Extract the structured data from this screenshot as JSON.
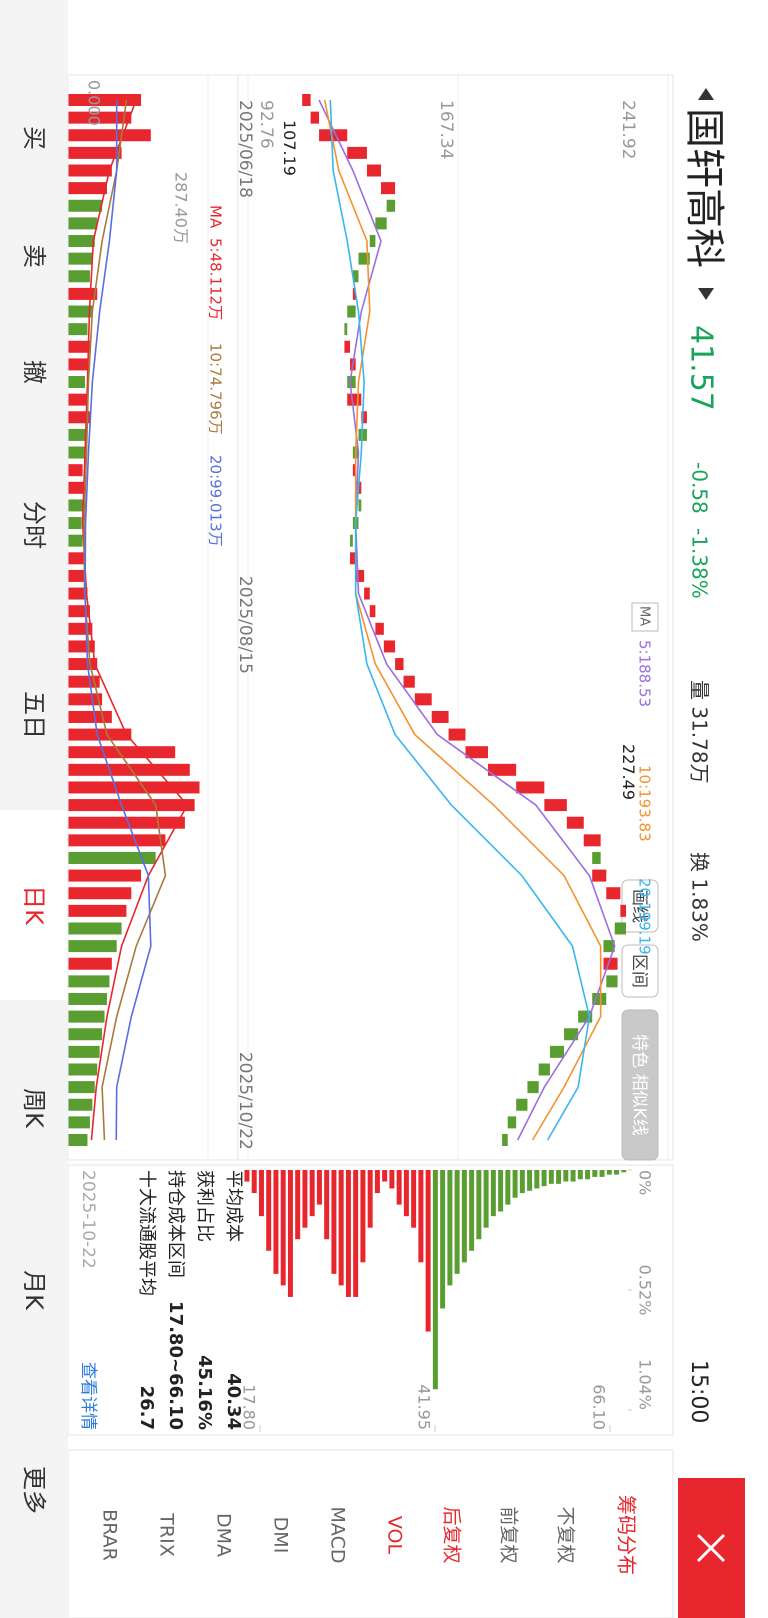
{
  "header": {
    "title": "国轩高科",
    "price": "41.57",
    "change": "-0.58",
    "change_pct": "-1.38%",
    "volume": "量 31.78万",
    "turnover": "换 1.83%",
    "time": "15:00"
  },
  "toolbar": {
    "ma_menu": "MA",
    "buttons": [
      "画线",
      "区间",
      "特色 相似K线"
    ]
  },
  "chart_data": {
    "type": "candlestick",
    "categories": [
      "2025/06/18",
      null,
      null,
      null,
      null,
      null,
      null,
      null,
      null,
      null,
      null,
      null,
      null,
      null,
      null,
      null,
      null,
      null,
      null,
      null,
      null,
      null,
      null,
      null,
      null,
      null,
      null,
      "2025/08/15",
      null,
      null,
      null,
      null,
      null,
      null,
      null,
      null,
      null,
      null,
      null,
      null,
      null,
      null,
      null,
      null,
      null,
      null,
      null,
      null,
      null,
      null,
      null,
      null,
      null,
      null,
      "2025/10/22",
      null,
      null,
      null,
      null,
      null
    ],
    "open": [
      112,
      115,
      118,
      128,
      135,
      140,
      145,
      142,
      138,
      136,
      132,
      130,
      131,
      128,
      127,
      129,
      131,
      128,
      133,
      135,
      132,
      130,
      131,
      133,
      132,
      130,
      129,
      131,
      134,
      136,
      138,
      141,
      145,
      148,
      152,
      158,
      164,
      170,
      178,
      188,
      198,
      206,
      212,
      218,
      215,
      220,
      225,
      227,
      223,
      219,
      224,
      220,
      215,
      210,
      205,
      200,
      196,
      192,
      188,
      185
    ],
    "values": [
      115,
      118,
      128,
      135,
      140,
      145,
      142,
      138,
      136,
      132,
      130,
      131,
      128,
      127,
      129,
      131,
      128,
      133,
      135,
      132,
      130,
      131,
      133,
      132,
      130,
      129,
      131,
      134,
      136,
      138,
      141,
      145,
      148,
      152,
      158,
      164,
      170,
      178,
      188,
      198,
      206,
      212,
      218,
      215,
      220,
      225,
      227,
      223,
      219,
      224,
      220,
      215,
      210,
      205,
      200,
      196,
      192,
      188,
      185,
      183
    ],
    "color_up": "#e8262d",
    "color_down": "#5a9e32",
    "ylim": [
      92.76,
      241.92
    ],
    "yticks": [
      241.92,
      167.34,
      92.76
    ],
    "grid": true,
    "extremes": [
      227.49,
      107.19
    ],
    "ma_series": [
      {
        "name": "5:188.53",
        "color": "#9b6fe0",
        "x": [
          0,
          4,
          8,
          12,
          16,
          20,
          24,
          28,
          32,
          36,
          40,
          44,
          48,
          52,
          56,
          59
        ],
        "values": [
          118,
          130,
          140,
          133,
          129,
          132,
          131,
          132,
          142,
          160,
          195,
          214,
          223,
          214,
          198,
          188.53
        ]
      },
      {
        "name": "10:193.83",
        "color": "#f5922f",
        "x": [
          0,
          4,
          8,
          12,
          16,
          20,
          24,
          28,
          32,
          36,
          40,
          44,
          48,
          52,
          56,
          59
        ],
        "values": [
          120,
          125,
          135,
          136,
          132,
          131,
          131,
          131,
          138,
          152,
          180,
          205,
          218,
          218,
          205,
          193.83
        ]
      },
      {
        "name": "20:199.19",
        "color": "#38b6f0",
        "x": [
          0,
          4,
          8,
          12,
          16,
          20,
          24,
          28,
          32,
          36,
          40,
          44,
          48,
          52,
          56,
          59
        ],
        "values": [
          122,
          123,
          128,
          132,
          134,
          133,
          131,
          131,
          135,
          145,
          165,
          190,
          208,
          214,
          210,
          199.19
        ]
      }
    ],
    "volume": {
      "values": [
        150,
        130,
        170,
        110,
        90,
        80,
        70,
        60,
        55,
        50,
        45,
        60,
        50,
        40,
        45,
        40,
        35,
        40,
        45,
        38,
        35,
        30,
        32,
        30,
        28,
        30,
        32,
        35,
        40,
        45,
        50,
        55,
        60,
        65,
        70,
        90,
        130,
        220,
        250,
        270,
        260,
        240,
        200,
        180,
        150,
        130,
        120,
        110,
        100,
        90,
        85,
        80,
        75,
        70,
        65,
        60,
        55,
        50,
        45,
        40
      ],
      "ylim": [
        0,
        287.4
      ],
      "yticks": [
        {
          "value": 287.4,
          "label": "287.40万"
        },
        {
          "value": 0,
          "label": "0.000"
        }
      ],
      "ma_label": "MA",
      "series": [
        {
          "name": "5:48.112万",
          "color": "#e8262d",
          "x": [
            0,
            4,
            8,
            12,
            16,
            20,
            24,
            28,
            32,
            36,
            40,
            44,
            48,
            52,
            56,
            59
          ],
          "values": [
            140,
            85,
            52,
            44,
            40,
            35,
            30,
            38,
            55,
            120,
            245,
            165,
            110,
            80,
            58,
            48.112
          ]
        },
        {
          "name": "10:74.796万",
          "color": "#a87b3c",
          "x": [
            0,
            4,
            8,
            12,
            16,
            20,
            24,
            28,
            32,
            36,
            40,
            44,
            48,
            52,
            56,
            59
          ],
          "values": [
            120,
            100,
            70,
            50,
            42,
            38,
            33,
            34,
            45,
            80,
            180,
            200,
            140,
            100,
            70,
            74.796
          ]
        },
        {
          "name": "20:99.013万",
          "color": "#5a6ee0",
          "x": [
            0,
            4,
            8,
            12,
            16,
            20,
            24,
            28,
            32,
            36,
            40,
            44,
            48,
            52,
            56,
            59
          ],
          "values": [
            100,
            100,
            85,
            65,
            50,
            42,
            36,
            35,
            40,
            60,
            110,
            165,
            170,
            130,
            100,
            99.013
          ]
        }
      ]
    }
  },
  "chip": {
    "xlim": [
      0,
      1.04
    ],
    "xticks": [
      {
        "value": 0,
        "label": "0%"
      },
      {
        "value": 0.52,
        "label": "0.52%"
      },
      {
        "value": 1.04,
        "label": "1.04%"
      }
    ],
    "ylim": [
      15.04,
      68.58
    ],
    "yticks": [
      {
        "value": 66.1,
        "label": "66.10"
      },
      41.95,
      {
        "value": 17.8,
        "label": "17.80"
      }
    ],
    "prices": [
      16,
      17,
      18,
      19,
      20,
      21,
      22,
      23,
      24,
      25,
      26,
      27,
      28,
      29,
      30,
      31,
      32,
      33,
      34,
      35,
      36,
      37,
      38,
      39,
      40,
      41,
      42,
      43,
      44,
      45,
      46,
      47,
      48,
      49,
      50,
      51,
      52,
      53,
      54,
      55,
      56,
      57,
      58,
      59,
      60,
      61,
      62,
      63,
      64,
      65,
      66,
      67,
      68
    ],
    "values": [
      0.05,
      0.1,
      0.2,
      0.35,
      0.45,
      0.5,
      0.55,
      0.3,
      0.25,
      0.2,
      0.15,
      0.3,
      0.45,
      0.5,
      0.55,
      0.55,
      0.4,
      0.25,
      0.1,
      0.05,
      0.08,
      0.15,
      0.2,
      0.25,
      0.4,
      0.7,
      0.95,
      0.6,
      0.5,
      0.45,
      0.4,
      0.35,
      0.3,
      0.25,
      0.2,
      0.18,
      0.15,
      0.12,
      0.1,
      0.09,
      0.08,
      0.07,
      0.06,
      0.06,
      0.05,
      0.05,
      0.04,
      0.04,
      0.03,
      0.03,
      0.02,
      0.02,
      0.01
    ],
    "color_profit": "#e8262d",
    "color_loss": "#5a9e32",
    "rows": [
      [
        "平均成本",
        "40.34"
      ],
      [
        "获利占比",
        "45.16%"
      ],
      [
        "持仓成本区间",
        "17.80~66.10"
      ],
      [
        "十大流通股平均",
        "26.7"
      ]
    ],
    "date": "2025-10-22",
    "detail_link": "查看详情"
  },
  "indicators": {
    "title": "筹码分布",
    "items": [
      "不复权",
      "前复权",
      "后复权",
      "VOL",
      "MACD",
      "DMI",
      "DMA",
      "TRIX",
      "BRAR"
    ]
  },
  "tabs": [
    "买",
    "卖",
    "撤",
    "分时",
    "五日",
    "日K",
    "周K",
    "月K",
    "更多"
  ]
}
